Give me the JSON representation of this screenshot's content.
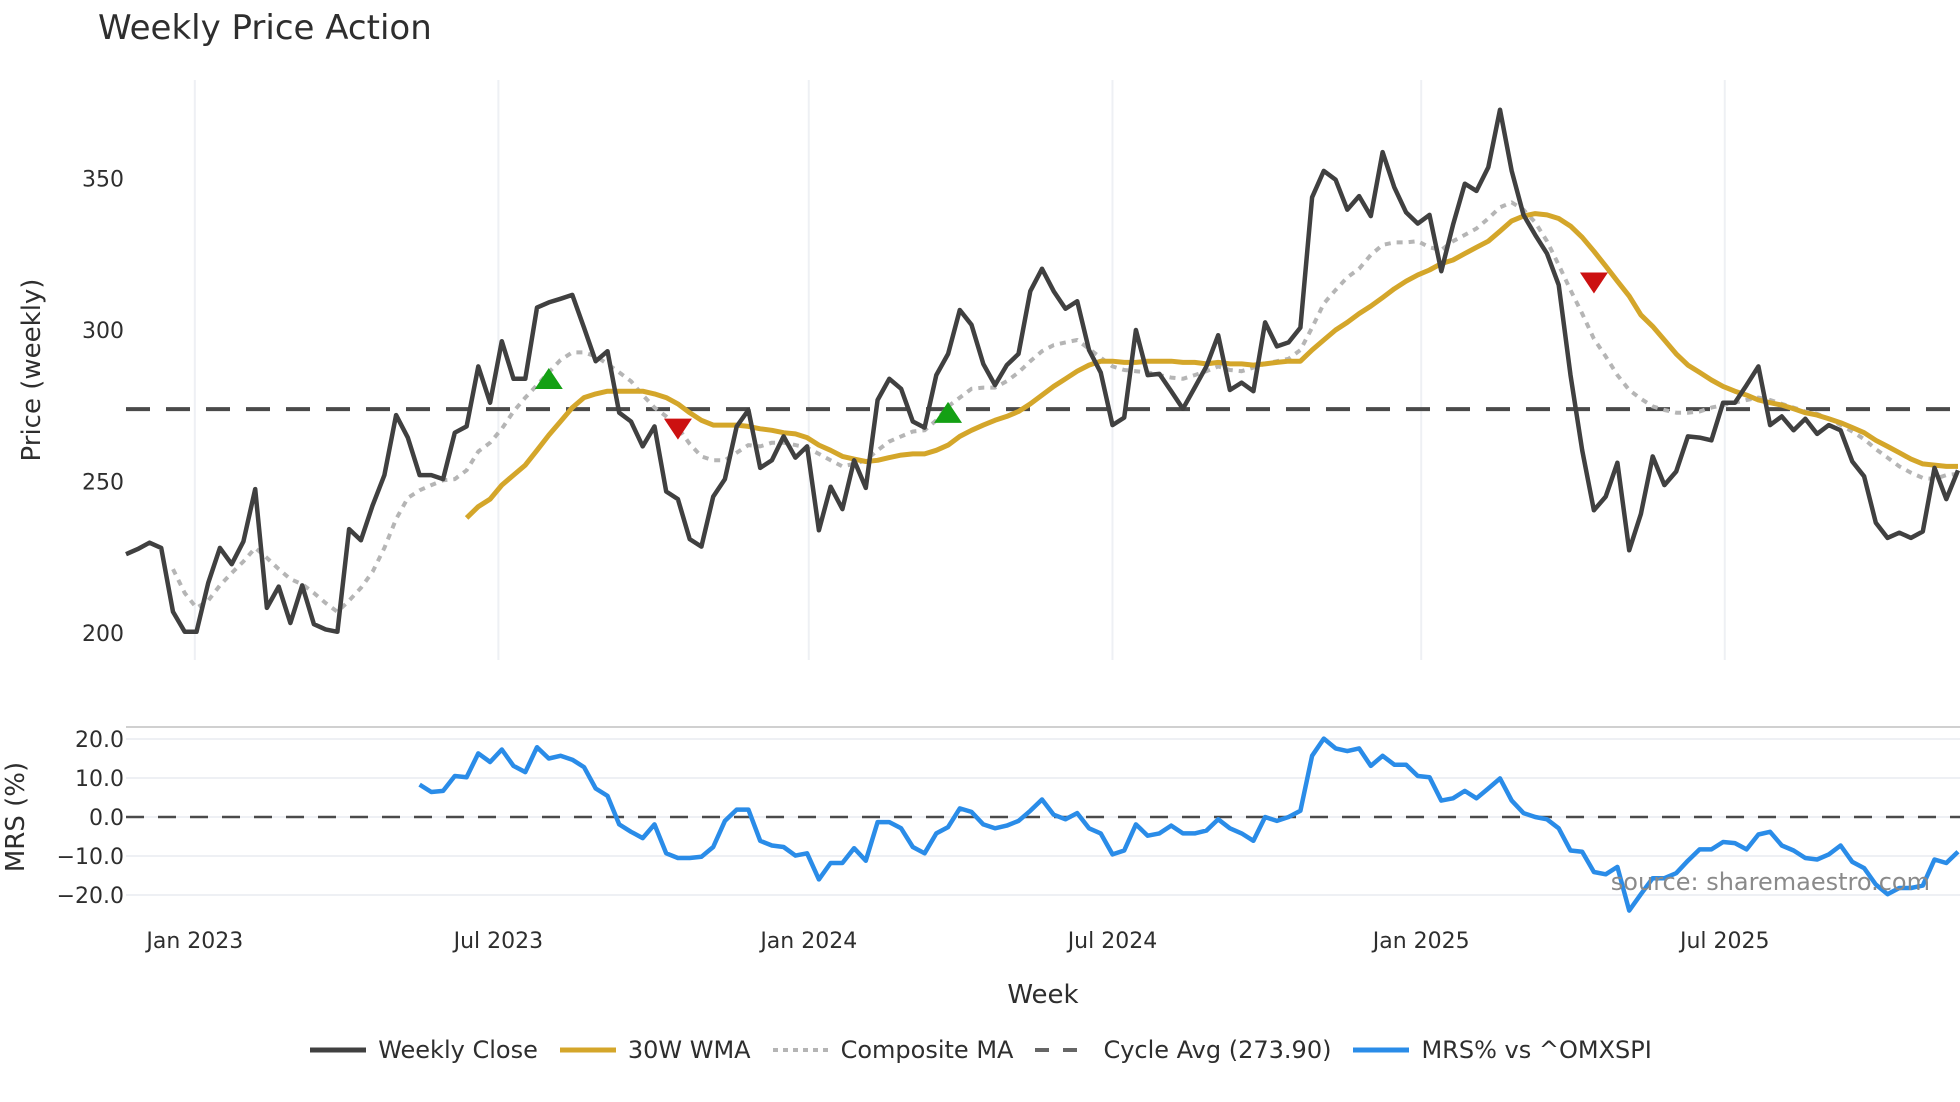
{
  "title": "Weekly Price Action",
  "source_note": "source: sharemaestro.com",
  "colors": {
    "close": "#404040",
    "wma": "#d4a62a",
    "composite": "#b5b5b5",
    "cycle": "#4a4a4a",
    "mrs": "#2a8ce8",
    "buy": "#14a014",
    "sell": "#cc1111",
    "grid": "#eef0f4"
  },
  "legend": [
    {
      "key": "close",
      "label": "Weekly Close"
    },
    {
      "key": "wma",
      "label": "30W WMA"
    },
    {
      "key": "composite",
      "label": "Composite MA"
    },
    {
      "key": "cycle",
      "label": "Cycle Avg (273.90)"
    },
    {
      "key": "mrs",
      "label": "MRS% vs ^OMXSPI"
    }
  ],
  "chart_data": [
    {
      "type": "line",
      "title": "Weekly Price Action",
      "xlabel": "Week",
      "ylabel": "Price (weekly)",
      "ylim": [
        193,
        378
      ],
      "yticks": [
        200,
        250,
        300,
        350
      ],
      "xticks": [
        "Jan 2023",
        "Jul 2023",
        "Jan 2024",
        "Jul 2024",
        "Jan 2025",
        "Jul 2025"
      ],
      "x_start": "2022-11-21",
      "x_step": "1 week",
      "grid": true,
      "cycle_avg": 273.9,
      "series": [
        {
          "name": "Weekly Close",
          "start_index": 0,
          "values": [
            226.0,
            227.7,
            229.8,
            228.1,
            207.0,
            200.4,
            200.4,
            216.5,
            228.1,
            222.7,
            230.2,
            247.5,
            208.3,
            215.3,
            203.3,
            215.7,
            202.9,
            201.2,
            200.4,
            234.3,
            230.6,
            242.1,
            252.1,
            271.9,
            264.5,
            252.1,
            252.1,
            250.8,
            266.1,
            268.2,
            288.0,
            276.0,
            296.3,
            283.9,
            283.9,
            307.4,
            309.1,
            310.3,
            311.6,
            300.8,
            289.7,
            293.0,
            272.7,
            269.8,
            261.6,
            268.2,
            246.7,
            244.2,
            231.0,
            228.5,
            245.0,
            250.8,
            268.2,
            273.6,
            254.5,
            257.0,
            264.9,
            257.9,
            261.6,
            233.9,
            248.3,
            240.9,
            257.0,
            247.9,
            276.9,
            283.9,
            280.6,
            269.8,
            267.8,
            285.1,
            292.1,
            306.6,
            301.7,
            288.8,
            281.8,
            288.4,
            292.1,
            312.8,
            320.2,
            312.8,
            307.0,
            309.5,
            293.4,
            286.0,
            268.6,
            271.1,
            300.0,
            285.1,
            285.5,
            279.8,
            274.0,
            281.0,
            288.0,
            298.3,
            280.2,
            282.6,
            279.8,
            302.5,
            294.6,
            295.9,
            300.8,
            343.8,
            352.5,
            349.6,
            339.7,
            344.2,
            337.6,
            358.7,
            347.1,
            338.8,
            335.1,
            338.0,
            319.4,
            334.7,
            348.3,
            345.9,
            353.7,
            372.7,
            352.5,
            338.0,
            331.4,
            325.2,
            314.9,
            285.1,
            260.3,
            240.5,
            245.0,
            256.2,
            227.3,
            239.3,
            258.3,
            248.8,
            253.3,
            264.9,
            264.5,
            263.6,
            276.0,
            276.0,
            281.8,
            288.0,
            268.6,
            271.5,
            266.9,
            270.7,
            265.7,
            268.6,
            266.9,
            256.6,
            251.7,
            236.4,
            231.4,
            233.1,
            231.4,
            233.5,
            254.5,
            244.2,
            253.7
          ]
        },
        {
          "name": "30W WMA",
          "start_index": 29,
          "values": [
            238.0,
            241.7,
            244.2,
            248.8,
            252.1,
            255.4,
            260.3,
            265.3,
            269.8,
            274.4,
            277.7,
            278.9,
            279.8,
            279.8,
            279.8,
            279.8,
            278.9,
            277.7,
            275.6,
            272.7,
            270.2,
            268.6,
            268.6,
            268.6,
            268.2,
            267.4,
            266.9,
            266.1,
            265.7,
            264.5,
            262.0,
            260.3,
            258.3,
            257.4,
            256.6,
            257.0,
            257.9,
            258.7,
            259.1,
            259.1,
            260.3,
            262.0,
            264.9,
            266.9,
            268.6,
            270.2,
            271.5,
            273.1,
            275.6,
            278.5,
            281.4,
            283.9,
            286.4,
            288.4,
            289.7,
            289.7,
            289.3,
            289.3,
            289.7,
            289.7,
            289.7,
            289.3,
            289.3,
            288.8,
            289.3,
            288.8,
            288.8,
            288.4,
            288.8,
            289.3,
            289.7,
            289.7,
            293.4,
            296.7,
            300.0,
            302.5,
            305.4,
            307.9,
            310.7,
            313.6,
            316.1,
            318.2,
            319.8,
            321.9,
            323.1,
            325.2,
            327.3,
            329.3,
            332.6,
            336.0,
            337.6,
            338.4,
            338.0,
            336.8,
            334.3,
            330.6,
            326.0,
            321.1,
            316.1,
            311.2,
            305.0,
            301.2,
            296.7,
            292.1,
            288.4,
            286.0,
            283.5,
            281.4,
            279.8,
            278.5,
            276.9,
            276.0,
            275.2,
            274.0,
            272.7,
            271.9,
            270.7,
            269.4,
            267.8,
            266.1,
            263.6,
            261.6,
            259.5,
            257.4,
            255.8,
            255.4,
            255.0,
            255.0
          ]
        },
        {
          "name": "Composite MA",
          "start_index": 4,
          "values": [
            221.1,
            213.2,
            208.3,
            210.7,
            215.7,
            219.8,
            223.6,
            228.1,
            224.8,
            221.1,
            217.8,
            216.1,
            213.2,
            209.9,
            207.0,
            210.7,
            214.9,
            220.2,
            228.1,
            237.6,
            244.6,
            247.1,
            248.8,
            250.4,
            250.8,
            253.7,
            259.9,
            262.8,
            267.4,
            273.1,
            277.7,
            281.8,
            286.0,
            290.1,
            292.6,
            292.6,
            291.3,
            288.8,
            286.0,
            283.1,
            278.5,
            274.4,
            271.5,
            267.8,
            262.4,
            258.3,
            257.0,
            257.0,
            259.5,
            262.0,
            261.6,
            262.8,
            262.8,
            262.0,
            261.2,
            259.1,
            257.0,
            255.0,
            255.8,
            257.0,
            260.3,
            263.2,
            264.9,
            266.5,
            266.9,
            270.2,
            274.8,
            277.7,
            280.6,
            281.0,
            281.0,
            283.1,
            286.0,
            289.7,
            293.0,
            295.0,
            295.9,
            296.7,
            293.8,
            290.9,
            288.0,
            286.8,
            286.4,
            286.0,
            285.1,
            284.3,
            283.9,
            285.1,
            286.4,
            288.0,
            286.8,
            286.4,
            287.6,
            288.8,
            289.7,
            290.5,
            293.4,
            300.8,
            308.7,
            313.2,
            317.4,
            320.2,
            324.8,
            328.1,
            328.9,
            328.9,
            329.3,
            327.3,
            326.4,
            329.3,
            331.4,
            333.5,
            336.8,
            340.5,
            342.1,
            339.7,
            335.5,
            329.3,
            321.5,
            313.2,
            305.4,
            297.1,
            291.3,
            285.1,
            280.2,
            277.3,
            274.8,
            273.6,
            272.7,
            272.7,
            273.1,
            274.4,
            275.2,
            276.0,
            276.9,
            277.7,
            276.9,
            275.6,
            274.4,
            273.1,
            272.3,
            270.7,
            268.6,
            266.5,
            264.0,
            260.7,
            257.9,
            255.0,
            252.9,
            251.2,
            250.8,
            252.1,
            252.5
          ]
        }
      ],
      "signals": [
        {
          "type": "buy",
          "index": 36,
          "price": 283.5
        },
        {
          "type": "sell",
          "index": 47,
          "price": 267.8
        },
        {
          "type": "buy",
          "index": 70,
          "price": 272.3
        },
        {
          "type": "sell",
          "index": 125,
          "price": 316.0
        }
      ]
    },
    {
      "type": "line",
      "title": "",
      "xlabel": "Week",
      "ylabel": "MRS (%)",
      "ylim": [
        -25.5,
        23
      ],
      "yticks": [
        20.0,
        10.0,
        0.0,
        -10.0,
        -20.0
      ],
      "ytick_labels": [
        "20.0",
        "10.0",
        "0.0",
        "−10.0",
        "−20.0"
      ],
      "zero_line": 0,
      "series": [
        {
          "name": "MRS% vs ^OMXSPI",
          "start_index": 25,
          "values": [
            8.3,
            6.4,
            6.7,
            10.5,
            10.2,
            16.3,
            14.1,
            17.3,
            13.1,
            11.5,
            17.9,
            15.0,
            15.7,
            14.7,
            12.8,
            7.3,
            5.4,
            -1.9,
            -3.8,
            -5.4,
            -1.9,
            -9.3,
            -10.5,
            -10.5,
            -10.2,
            -7.7,
            -1.0,
            1.9,
            1.9,
            -6.1,
            -7.3,
            -7.7,
            -9.9,
            -9.3,
            -16.0,
            -11.8,
            -11.8,
            -8.0,
            -11.2,
            -1.3,
            -1.3,
            -2.9,
            -7.7,
            -9.3,
            -4.2,
            -2.6,
            2.2,
            1.3,
            -1.9,
            -2.9,
            -2.2,
            -1.0,
            1.6,
            4.5,
            0.6,
            -0.6,
            1.0,
            -2.9,
            -4.2,
            -9.6,
            -8.6,
            -1.9,
            -4.8,
            -4.2,
            -2.2,
            -4.2,
            -4.2,
            -3.5,
            -0.6,
            -2.9,
            -4.2,
            -6.1,
            0.0,
            -1.0,
            0.0,
            1.6,
            15.7,
            20.1,
            17.6,
            16.9,
            17.6,
            13.1,
            15.7,
            13.4,
            13.4,
            10.5,
            10.2,
            4.2,
            4.8,
            6.7,
            4.8,
            7.3,
            9.9,
            4.2,
            1.0,
            0.0,
            -0.6,
            -2.9,
            -8.6,
            -8.9,
            -14.1,
            -14.7,
            -12.8,
            -24.0,
            -19.8,
            -15.7,
            -15.7,
            -14.4,
            -11.2,
            -8.3,
            -8.3,
            -6.4,
            -6.7,
            -8.3,
            -4.5,
            -3.8,
            -7.3,
            -8.6,
            -10.5,
            -10.9,
            -9.6,
            -7.3,
            -11.5,
            -13.1,
            -17.3,
            -19.8,
            -18.2,
            -18.2,
            -17.6,
            -10.9,
            -11.8,
            -8.9
          ]
        }
      ]
    }
  ]
}
